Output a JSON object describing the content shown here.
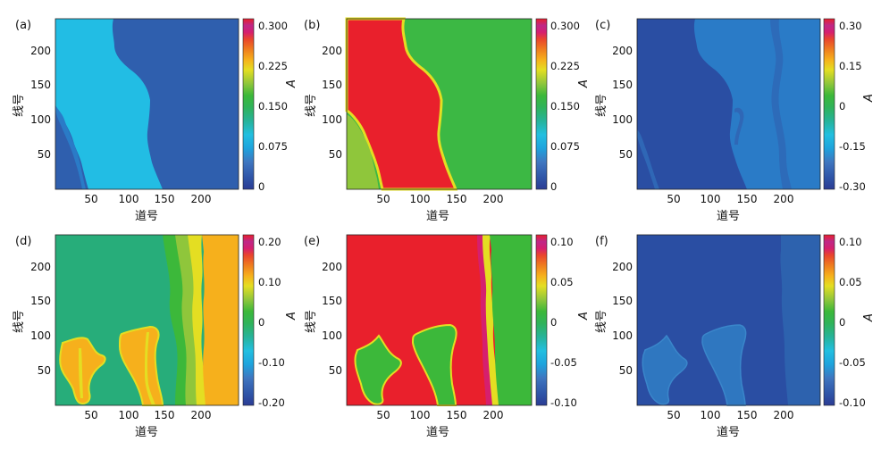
{
  "figure": {
    "panels": [
      "a",
      "b",
      "c",
      "d",
      "e",
      "f"
    ]
  },
  "colorscale": [
    "#2b3c94",
    "#2f55a8",
    "#3f76c0",
    "#1ea3dd",
    "#22bfe0",
    "#26b39a",
    "#2fb35b",
    "#3cb83a",
    "#8fc63b",
    "#e4de22",
    "#f6b01c",
    "#ef7d1f",
    "#e9452c",
    "#ea2a3a",
    "#d61f6e",
    "#bf2787",
    "#e8202c"
  ],
  "chart_data": [
    {
      "panel_label": "(a)",
      "type": "heatmap",
      "xlabel": "道号",
      "ylabel": "线号",
      "xticks": [
        50,
        100,
        150,
        200
      ],
      "yticks": [
        50,
        100,
        150,
        200
      ],
      "xlim": [
        0,
        250
      ],
      "ylim": [
        0,
        245
      ],
      "colorbar": {
        "label": "A",
        "ticks": [
          "0.300",
          "0.225",
          "0.150",
          "0.075",
          "0"
        ],
        "min": 0,
        "max": 0.3
      },
      "background_value": 0.06,
      "regions": [
        {
          "value": 0.11,
          "x": [
            0,
            0,
            12,
            30,
            38,
            47,
            54,
            60,
            72,
            98,
            118,
            150,
            150,
            122,
            114,
            108,
            100,
            90,
            80,
            78,
            77,
            76,
            82,
            84,
            86,
            80,
            76,
            40,
            38,
            30,
            20,
            12,
            0
          ]
        }
      ]
    },
    {
      "panel_label": "(b)",
      "type": "heatmap",
      "xlabel": "道号",
      "ylabel": "线号",
      "xticks": [
        50,
        100,
        150,
        200
      ],
      "yticks": [
        50,
        100,
        150,
        200
      ],
      "xlim": [
        0,
        250
      ],
      "ylim": [
        0,
        245
      ],
      "colorbar": {
        "label": "A",
        "ticks": [
          "0.300",
          "0.225",
          "0.150",
          "0.075",
          "0"
        ],
        "min": 0,
        "max": 0.3
      },
      "background_value": 0.15,
      "regions": [
        {
          "value": 0.3,
          "x_left": [
            0,
            0,
            0,
            0,
            0,
            0,
            0,
            0,
            0,
            0,
            0,
            0,
            0,
            0,
            0,
            0,
            0,
            0,
            0,
            0,
            0,
            0,
            0,
            0,
            0,
            0,
            0,
            0,
            0,
            0,
            0,
            0,
            0
          ],
          "x_right": [
            0,
            0,
            12,
            30,
            38,
            47,
            54,
            60,
            72,
            98,
            118,
            150,
            150,
            122,
            114,
            108,
            100,
            90,
            80,
            78,
            77,
            76,
            82,
            84,
            86,
            80,
            76,
            40,
            38,
            30,
            20,
            12,
            0
          ]
        }
      ]
    },
    {
      "panel_label": "(c)",
      "type": "heatmap",
      "xlabel": "道号",
      "ylabel": "线号",
      "xticks": [
        50,
        100,
        150,
        200
      ],
      "yticks": [
        50,
        100,
        150,
        200
      ],
      "xlim": [
        0,
        250
      ],
      "ylim": [
        0,
        245
      ],
      "colorbar": {
        "label": "A",
        "ticks": [
          "0.30",
          "0.15",
          "0",
          "-0.15",
          "-0.30"
        ],
        "min": -0.3,
        "max": 0.3
      },
      "background_value": -0.2
    },
    {
      "panel_label": "(d)",
      "type": "heatmap",
      "xlabel": "道号",
      "ylabel": "线号",
      "xticks": [
        50,
        100,
        150,
        200
      ],
      "yticks": [
        50,
        100,
        150,
        200
      ],
      "xlim": [
        0,
        250
      ],
      "ylim": [
        0,
        245
      ],
      "colorbar": {
        "label": "A",
        "ticks": [
          "0.20",
          "0.10",
          "0",
          "-0.10",
          "-0.20"
        ],
        "min": -0.2,
        "max": 0.2
      },
      "background_value": 0.0
    },
    {
      "panel_label": "(e)",
      "type": "heatmap",
      "xlabel": "道号",
      "ylabel": "线号",
      "xticks": [
        50,
        100,
        150,
        200
      ],
      "yticks": [
        50,
        100,
        150,
        200
      ],
      "xlim": [
        0,
        250
      ],
      "ylim": [
        0,
        245
      ],
      "colorbar": {
        "label": "A",
        "ticks": [
          "0.10",
          "0.05",
          "0",
          "-0.05",
          "-0.10"
        ],
        "min": -0.1,
        "max": 0.1
      },
      "background_value": 0.1
    },
    {
      "panel_label": "(f)",
      "type": "heatmap",
      "xlabel": "道号",
      "ylabel": "线号",
      "xticks": [
        50,
        100,
        150,
        200
      ],
      "yticks": [
        50,
        100,
        150,
        200
      ],
      "xlim": [
        0,
        250
      ],
      "ylim": [
        0,
        245
      ],
      "colorbar": {
        "label": "A",
        "ticks": [
          "0.10",
          "0.05",
          "0",
          "-0.05",
          "-0.10"
        ],
        "min": -0.1,
        "max": 0.1
      },
      "background_value": -0.085
    }
  ]
}
